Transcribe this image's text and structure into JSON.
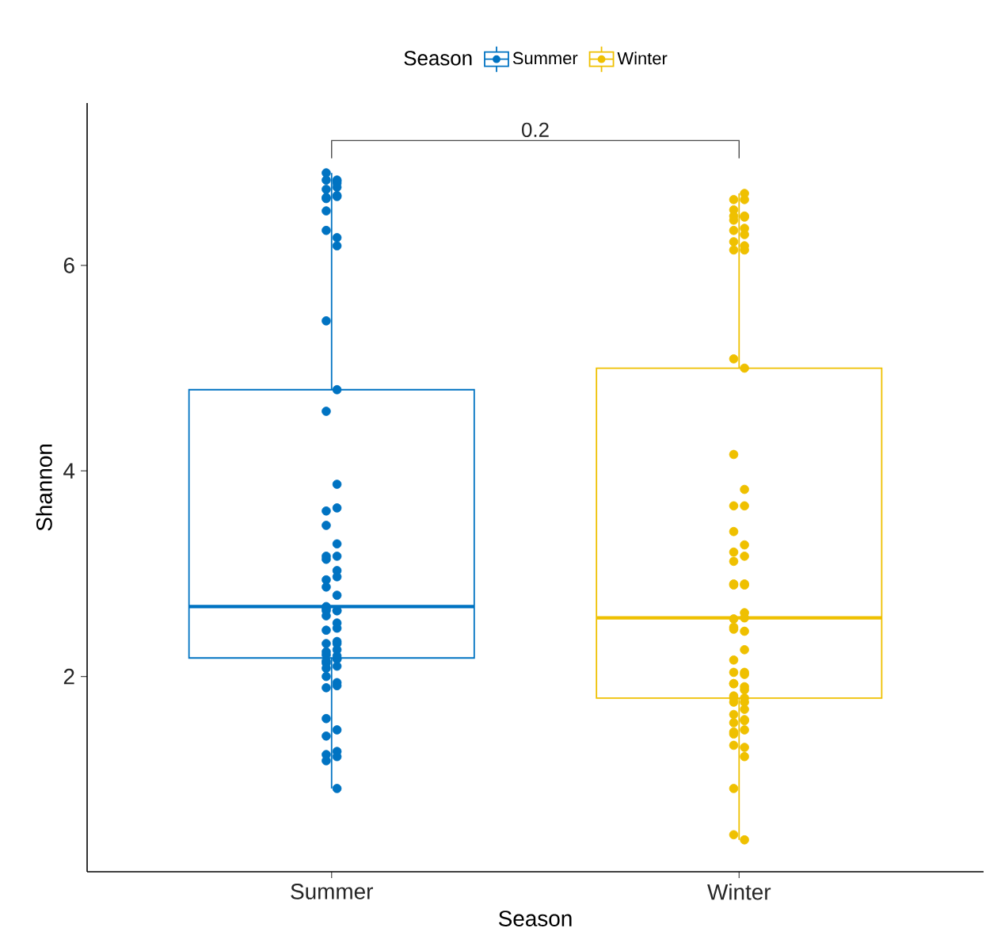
{
  "chart_data": {
    "type": "box",
    "xlabel": "Season",
    "ylabel": "Shannon",
    "legend_title": "Season",
    "legend": "top",
    "marker": "circle",
    "categories": [
      "Summer",
      "Winter"
    ],
    "ylim": [
      0.1,
      7.58
    ],
    "yticks": [
      2,
      4,
      6
    ],
    "annotations": [
      "0.2"
    ],
    "series": [
      {
        "name": "Summer",
        "color": "#0073c2",
        "boxes": [
          {
            "low": 0.91,
            "q1": 2.18,
            "median": 2.68,
            "q3": 4.79,
            "high": 6.9
          },
          null
        ]
      },
      {
        "name": "Winter",
        "color": "#efc000",
        "boxes": [
          null,
          {
            "low": 0.41,
            "q1": 1.79,
            "median": 2.57,
            "q3": 5.0,
            "high": 6.7
          }
        ]
      },
      {
        "type": "scatter",
        "color": "#0073c2",
        "x": [
          "Summer",
          "Summer",
          "Summer",
          "Summer",
          "Summer",
          "Summer",
          "Summer",
          "Summer",
          "Summer",
          "Summer",
          "Summer",
          "Summer",
          "Summer",
          "Summer",
          "Summer",
          "Summer",
          "Summer",
          "Summer",
          "Summer",
          "Summer",
          "Summer",
          "Summer",
          "Summer",
          "Summer",
          "Summer",
          "Summer",
          "Summer",
          "Summer",
          "Summer",
          "Summer",
          "Summer",
          "Summer",
          "Summer",
          "Summer",
          "Summer",
          "Summer",
          "Summer",
          "Summer",
          "Summer",
          "Summer",
          "Summer",
          "Summer",
          "Summer",
          "Summer",
          "Summer",
          "Summer",
          "Summer",
          "Summer",
          "Summer",
          "Summer",
          "Summer",
          "Summer",
          "Summer",
          "Summer",
          "Summer",
          "Summer",
          "Summer",
          "Summer",
          "Summer",
          "Summer",
          "Summer",
          "Summer",
          "Summer",
          "Summer",
          "Summer"
        ],
        "values": [
          6.83,
          6.83,
          6.82,
          6.74,
          6.67,
          6.66,
          6.68,
          6.65,
          6.8,
          6.9,
          6.76,
          6.53,
          6.27,
          6.34,
          6.19,
          5.46,
          4.79,
          4.58,
          3.87,
          3.61,
          3.64,
          3.47,
          3.29,
          3.14,
          3.17,
          3.17,
          3.03,
          2.94,
          2.97,
          2.87,
          2.79,
          2.68,
          2.64,
          2.59,
          2.52,
          2.66,
          2.64,
          2.64,
          2.47,
          2.45,
          2.34,
          2.32,
          2.32,
          2.24,
          2.26,
          2.21,
          2.17,
          2.13,
          2.2,
          2.15,
          2.17,
          2.08,
          2.1,
          2.0,
          1.94,
          1.89,
          1.91,
          1.59,
          1.48,
          1.42,
          1.27,
          1.18,
          1.22,
          1.24,
          0.91
        ]
      },
      {
        "type": "scatter",
        "color": "#efc000",
        "x": [
          "Winter",
          "Winter",
          "Winter",
          "Winter",
          "Winter",
          "Winter",
          "Winter",
          "Winter",
          "Winter",
          "Winter",
          "Winter",
          "Winter",
          "Winter",
          "Winter",
          "Winter",
          "Winter",
          "Winter",
          "Winter",
          "Winter",
          "Winter",
          "Winter",
          "Winter",
          "Winter",
          "Winter",
          "Winter",
          "Winter",
          "Winter",
          "Winter",
          "Winter",
          "Winter",
          "Winter",
          "Winter",
          "Winter",
          "Winter",
          "Winter",
          "Winter",
          "Winter",
          "Winter",
          "Winter",
          "Winter",
          "Winter",
          "Winter",
          "Winter",
          "Winter",
          "Winter",
          "Winter",
          "Winter",
          "Winter",
          "Winter",
          "Winter",
          "Winter",
          "Winter",
          "Winter",
          "Winter",
          "Winter",
          "Winter",
          "Winter",
          "Winter",
          "Winter",
          "Winter",
          "Winter",
          "Winter",
          "Winter",
          "Winter"
        ],
        "values": [
          6.7,
          6.64,
          6.64,
          6.54,
          6.48,
          6.48,
          6.47,
          6.44,
          6.36,
          6.34,
          6.3,
          6.23,
          6.19,
          6.15,
          6.15,
          5.09,
          5.0,
          4.16,
          3.82,
          3.66,
          3.66,
          3.41,
          3.28,
          3.21,
          3.17,
          3.12,
          2.9,
          2.9,
          2.89,
          2.89,
          2.62,
          2.56,
          2.57,
          2.48,
          2.44,
          2.46,
          2.26,
          2.16,
          2.02,
          2.04,
          2.04,
          1.93,
          1.9,
          1.93,
          1.87,
          1.79,
          1.75,
          1.81,
          1.79,
          1.75,
          1.68,
          1.63,
          1.57,
          1.55,
          1.58,
          1.46,
          1.48,
          1.44,
          1.31,
          1.33,
          1.22,
          0.91,
          0.41,
          0.46
        ]
      }
    ]
  }
}
